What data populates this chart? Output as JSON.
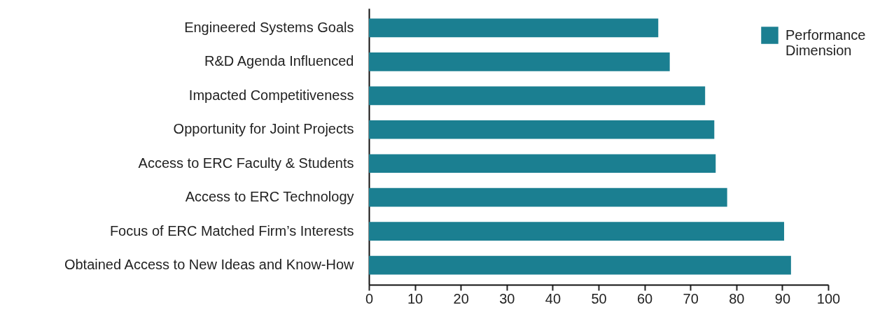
{
  "chart_data": {
    "type": "bar",
    "orientation": "horizontal",
    "categories": [
      "Engineered Systems Goals",
      "R&D Agenda Influenced",
      "Impacted Competitiveness",
      "Opportunity for Joint Projects",
      "Access to ERC Faculty & Students",
      "Access to ERC Technology",
      "Focus of ERC Matched Firm’s Interests",
      "Obtained Access to New Ideas and Know-How"
    ],
    "series": [
      {
        "name": "Performance Dimension",
        "color": "#1b7f91",
        "values": [
          63.0,
          65.5,
          73.2,
          75.2,
          75.5,
          78.0,
          90.4,
          91.9
        ]
      }
    ],
    "xlim": [
      0,
      100
    ],
    "xticks": [
      0,
      10,
      20,
      30,
      40,
      50,
      60,
      70,
      80,
      90,
      100
    ],
    "legend": "top right",
    "grid": false
  }
}
